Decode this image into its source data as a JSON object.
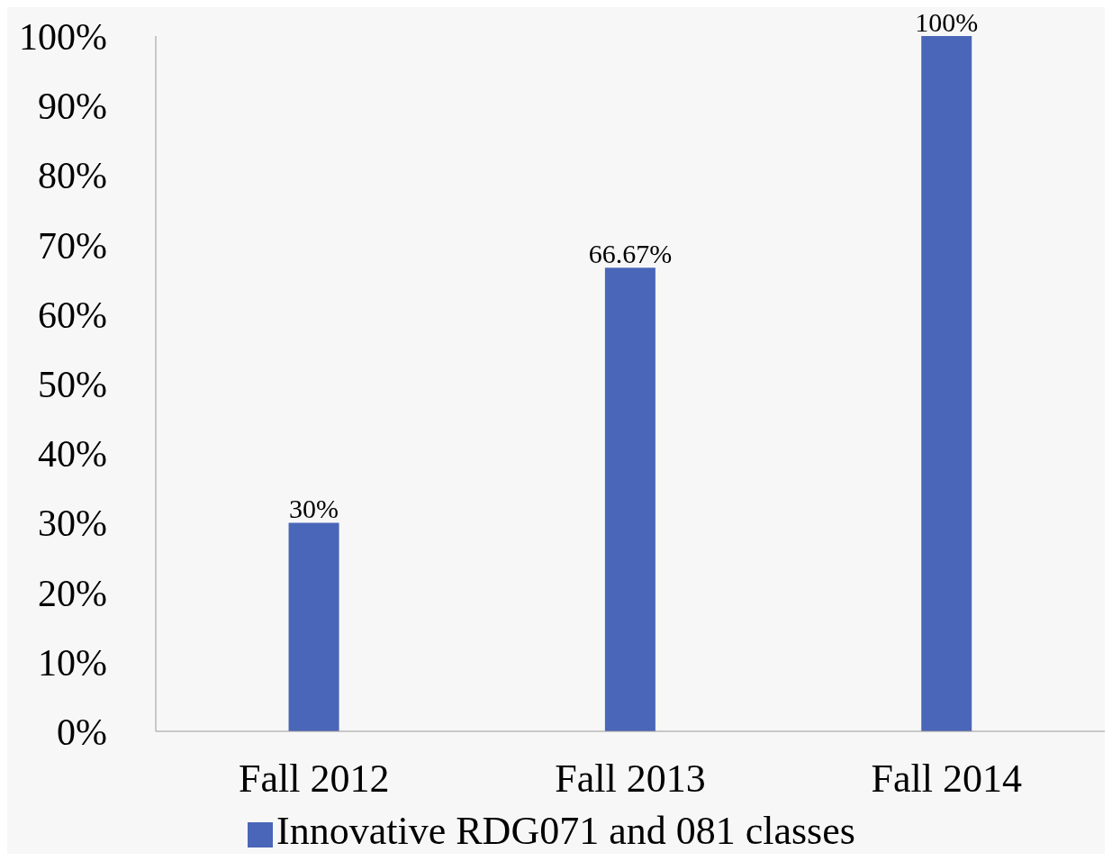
{
  "chart_data": {
    "type": "bar",
    "categories": [
      "Fall 2012",
      "Fall 2013",
      "Fall 2014"
    ],
    "series": [
      {
        "name": "Innovative RDG071 and 081 classes",
        "color": "#4a66b8",
        "values": [
          30,
          66.67,
          100
        ],
        "value_labels": [
          "30%",
          "66.67%",
          "100%"
        ]
      }
    ],
    "ylim": [
      0,
      100
    ],
    "yticks": [
      {
        "value": 0,
        "label": "0%"
      },
      {
        "value": 10,
        "label": "10%"
      },
      {
        "value": 20,
        "label": "20%"
      },
      {
        "value": 30,
        "label": "30%"
      },
      {
        "value": 40,
        "label": "40%"
      },
      {
        "value": 50,
        "label": "50%"
      },
      {
        "value": 60,
        "label": "60%"
      },
      {
        "value": 70,
        "label": "70%"
      },
      {
        "value": 80,
        "label": "80%"
      },
      {
        "value": 90,
        "label": "90%"
      },
      {
        "value": 100,
        "label": "100%"
      }
    ],
    "grid": false,
    "legend": "bottom"
  }
}
